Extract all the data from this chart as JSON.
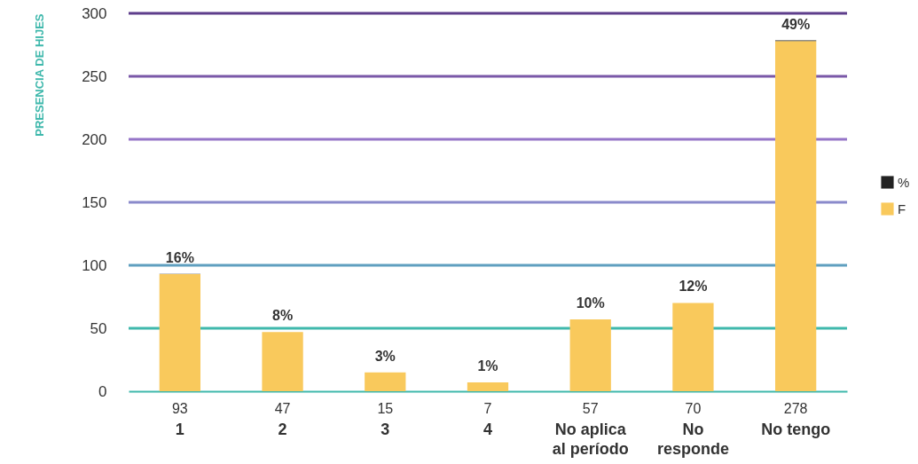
{
  "chart_data": {
    "type": "bar",
    "ylabel": "PRESENCIA DE HIJES",
    "categories": [
      "1",
      "2",
      "3",
      "4",
      "No aplica al período",
      "No responde",
      "No tengo"
    ],
    "stacked": true,
    "series": [
      {
        "name": "F",
        "color": "#f9c95c",
        "values": [
          93,
          47,
          15,
          7,
          57,
          70,
          278
        ],
        "value_labels": [
          "93",
          "47",
          "15",
          "7",
          "57",
          "70",
          "278"
        ]
      },
      {
        "name": "%",
        "color": "#222222",
        "values": [
          0.16,
          0.08,
          0.03,
          0.01,
          0.1,
          0.12,
          0.49
        ],
        "value_labels": [
          "16%",
          "8%",
          "3%",
          "1%",
          "10%",
          "12%",
          "49%"
        ]
      }
    ],
    "ylim": [
      0,
      300
    ],
    "yticks": [
      0,
      50,
      100,
      150,
      200,
      250,
      300
    ],
    "legend": "right",
    "ref_lines": [
      {
        "axis": "y",
        "value": 50,
        "color": "#3fb8ac"
      },
      {
        "axis": "y",
        "value": 100,
        "color": "#5f9fbf"
      },
      {
        "axis": "y",
        "value": 150,
        "color": "#8a8acb"
      },
      {
        "axis": "y",
        "value": 200,
        "color": "#9575c8"
      },
      {
        "axis": "y",
        "value": 250,
        "color": "#7a58a8"
      },
      {
        "axis": "y",
        "value": 300,
        "color": "#5e3e8c"
      }
    ]
  }
}
